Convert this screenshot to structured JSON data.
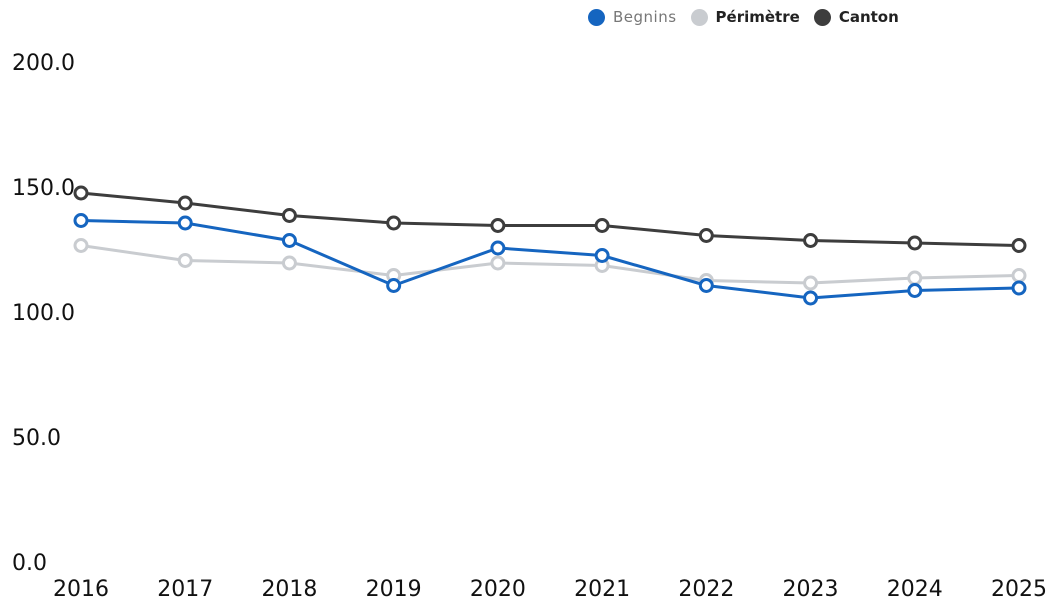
{
  "legend": {
    "items": [
      {
        "label": "Begnins",
        "color": "#1565c0"
      },
      {
        "label": "Périmètre",
        "color": "#c9ccd0"
      },
      {
        "label": "Canton",
        "color": "#3d3d3d"
      }
    ]
  },
  "chart_data": {
    "type": "line",
    "x": [
      "2016",
      "2017",
      "2018",
      "2019",
      "2020",
      "2021",
      "2022",
      "2023",
      "2024",
      "2025"
    ],
    "ylim": [
      0,
      200
    ],
    "yticks": [
      "0.0",
      "50.0",
      "100.0",
      "150.0",
      "200.0"
    ],
    "grid": false,
    "legend_position": "top-right",
    "series": [
      {
        "name": "Périmètre",
        "color": "#c9ccd0",
        "values": [
          127,
          121,
          120,
          115,
          120,
          119,
          113,
          112,
          114,
          115
        ]
      },
      {
        "name": "Begnins",
        "color": "#1565c0",
        "values": [
          137,
          136,
          129,
          111,
          126,
          123,
          111,
          106,
          109,
          110
        ]
      },
      {
        "name": "Canton",
        "color": "#3d3d3d",
        "values": [
          148,
          144,
          139,
          136,
          135,
          135,
          131,
          129,
          128,
          127
        ]
      }
    ]
  }
}
